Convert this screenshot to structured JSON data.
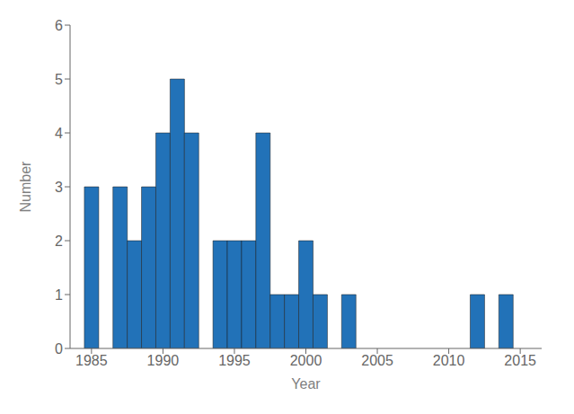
{
  "chart_data": {
    "type": "bar",
    "x": [
      1985,
      1986,
      1987,
      1988,
      1989,
      1990,
      1991,
      1992,
      1993,
      1994,
      1995,
      1996,
      1997,
      1998,
      1999,
      2000,
      2001,
      2002,
      2003,
      2004,
      2005,
      2006,
      2007,
      2008,
      2009,
      2010,
      2011,
      2012,
      2013,
      2014,
      2015
    ],
    "values": [
      3,
      0,
      3,
      2,
      3,
      4,
      5,
      4,
      0,
      2,
      2,
      2,
      4,
      1,
      1,
      2,
      1,
      0,
      1,
      0,
      0,
      0,
      0,
      0,
      0,
      0,
      0,
      1,
      0,
      1,
      0
    ],
    "color": "#2272b8",
    "xlabel": "Year",
    "ylabel": "Number",
    "xlim": [
      1983.5,
      2016.5
    ],
    "ylim": [
      0,
      6
    ],
    "xticks": [
      1985,
      1990,
      1995,
      2000,
      2005,
      2010,
      2015
    ],
    "yticks": [
      0,
      1,
      2,
      3,
      4,
      5,
      6
    ],
    "grid": false
  }
}
